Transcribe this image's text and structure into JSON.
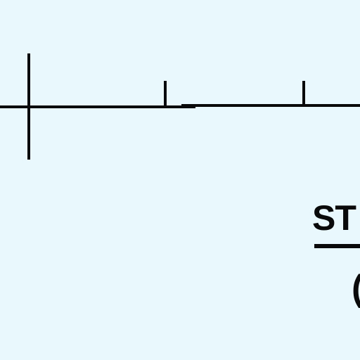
{
  "diagram": {
    "title_fragment": "ST",
    "subtitle_fragment": "(",
    "line_color": "#0a0a0a",
    "background_color": "#e8f8fc"
  }
}
